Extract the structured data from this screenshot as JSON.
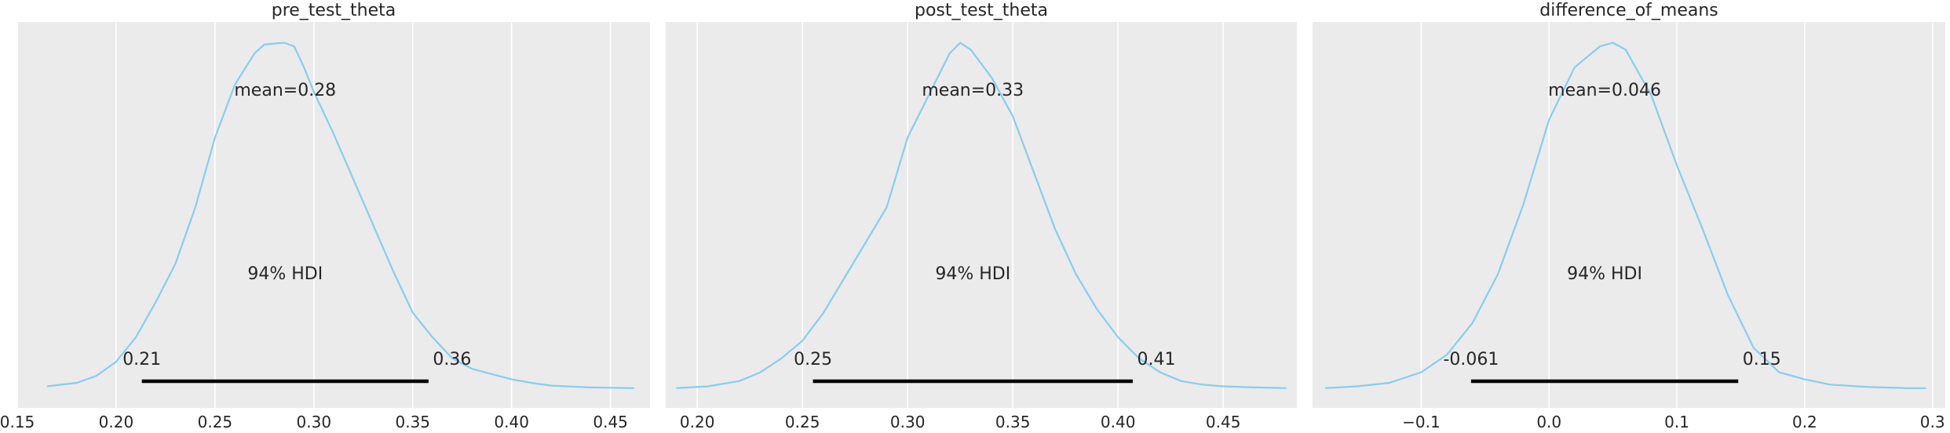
{
  "colors": {
    "background": "#ebebeb",
    "grid": "#ffffff",
    "kde": "#87ceeb",
    "hdi_line": "#000000",
    "text": "#262626"
  },
  "chart_data": [
    {
      "type": "area",
      "title": "pre_test_theta",
      "grid": true,
      "xlim": [
        0.15,
        0.47
      ],
      "xticks": [
        0.15,
        0.2,
        0.25,
        0.3,
        0.35,
        0.4,
        0.45
      ],
      "xtick_labels": [
        "0.15",
        "0.20",
        "0.25",
        "0.30",
        "0.35",
        "0.40",
        "0.45"
      ],
      "mean_label": "mean=0.28",
      "hdi_label": "94% HDI",
      "hdi": [
        0.213,
        0.358
      ],
      "hdi_low_label": "0.21",
      "hdi_high_label": "0.36",
      "density_x": [
        0.165,
        0.18,
        0.19,
        0.2,
        0.21,
        0.22,
        0.23,
        0.24,
        0.25,
        0.26,
        0.27,
        0.275,
        0.285,
        0.29,
        0.295,
        0.3,
        0.31,
        0.32,
        0.33,
        0.34,
        0.35,
        0.36,
        0.37,
        0.38,
        0.39,
        0.4,
        0.41,
        0.42,
        0.44,
        0.462
      ],
      "density_y": [
        0.01,
        0.02,
        0.04,
        0.08,
        0.15,
        0.25,
        0.36,
        0.52,
        0.72,
        0.87,
        0.96,
        0.985,
        0.99,
        0.98,
        0.92,
        0.85,
        0.73,
        0.6,
        0.47,
        0.34,
        0.22,
        0.15,
        0.09,
        0.06,
        0.045,
        0.03,
        0.02,
        0.012,
        0.007,
        0.005
      ]
    },
    {
      "type": "area",
      "title": "post_test_theta",
      "grid": true,
      "xlim": [
        0.185,
        0.485
      ],
      "xticks": [
        0.2,
        0.25,
        0.3,
        0.35,
        0.4,
        0.45
      ],
      "xtick_labels": [
        "0.20",
        "0.25",
        "0.30",
        "0.35",
        "0.40",
        "0.45"
      ],
      "mean_label": "mean=0.33",
      "hdi_label": "94% HDI",
      "hdi": [
        0.255,
        0.407
      ],
      "hdi_low_label": "0.25",
      "hdi_high_label": "0.41",
      "density_x": [
        0.19,
        0.205,
        0.22,
        0.23,
        0.24,
        0.25,
        0.26,
        0.27,
        0.28,
        0.29,
        0.3,
        0.31,
        0.32,
        0.325,
        0.33,
        0.34,
        0.35,
        0.36,
        0.37,
        0.38,
        0.39,
        0.4,
        0.41,
        0.42,
        0.43,
        0.44,
        0.45,
        0.465,
        0.48
      ],
      "density_y": [
        0.005,
        0.01,
        0.025,
        0.05,
        0.09,
        0.14,
        0.22,
        0.32,
        0.42,
        0.52,
        0.72,
        0.84,
        0.96,
        0.99,
        0.97,
        0.89,
        0.78,
        0.62,
        0.46,
        0.33,
        0.23,
        0.15,
        0.09,
        0.05,
        0.025,
        0.015,
        0.01,
        0.007,
        0.005
      ]
    },
    {
      "type": "area",
      "title": "difference_of_means",
      "grid": true,
      "xlim": [
        -0.185,
        0.31
      ],
      "xticks": [
        -0.1,
        0.0,
        0.1,
        0.2,
        0.3
      ],
      "xtick_labels": [
        "−0.1",
        "0.0",
        "0.1",
        "0.2",
        "0.3"
      ],
      "mean_label": "mean=0.046",
      "hdi_label": "94% HDI",
      "hdi": [
        -0.061,
        0.148
      ],
      "hdi_low_label": "-0.061",
      "hdi_high_label": "0.15",
      "density_x": [
        -0.175,
        -0.15,
        -0.125,
        -0.1,
        -0.08,
        -0.06,
        -0.04,
        -0.02,
        0.0,
        0.02,
        0.04,
        0.05,
        0.06,
        0.08,
        0.1,
        0.12,
        0.14,
        0.16,
        0.18,
        0.2,
        0.22,
        0.25,
        0.28,
        0.295
      ],
      "density_y": [
        0.005,
        0.01,
        0.02,
        0.05,
        0.1,
        0.19,
        0.33,
        0.53,
        0.77,
        0.92,
        0.98,
        0.99,
        0.97,
        0.84,
        0.64,
        0.46,
        0.27,
        0.12,
        0.05,
        0.03,
        0.015,
        0.008,
        0.005,
        0.005
      ]
    }
  ]
}
